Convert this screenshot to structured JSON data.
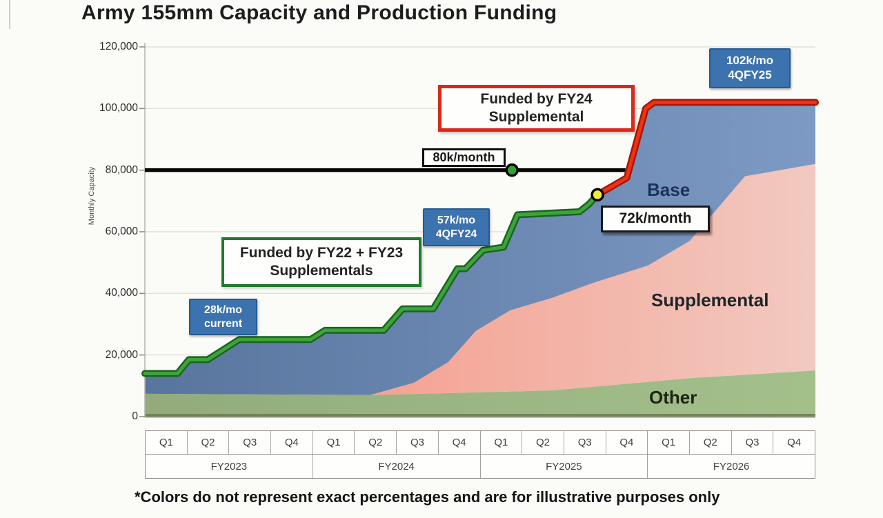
{
  "title": "Army 155mm Capacity and Production Funding",
  "footnote": "*Colors do not represent exact percentages and are for illustrative purposes only",
  "y_axis": {
    "label": "Monthly Capacity",
    "ticks": [
      {
        "text": "120,000",
        "k": 120
      },
      {
        "text": "100,000",
        "k": 100
      },
      {
        "text": "80,000",
        "k": 80
      },
      {
        "text": "60,000",
        "k": 60
      },
      {
        "text": "40,000",
        "k": 40
      },
      {
        "text": "20,000",
        "k": 20
      },
      {
        "text": "0",
        "k": 0
      }
    ]
  },
  "x_axis": {
    "years": [
      "FY2023",
      "FY2024",
      "FY2025",
      "FY2026"
    ],
    "quarters": [
      "Q1",
      "Q2",
      "Q3",
      "Q4"
    ]
  },
  "annotations": {
    "callout_28k": {
      "line1": "28k/mo",
      "line2": "current"
    },
    "callout_57k": {
      "line1": "57k/mo",
      "line2": "4QFY24"
    },
    "callout_102k": {
      "line1": "102k/mo",
      "line2": "4QFY25"
    },
    "funded_green": {
      "line1": "Funded by FY22 + FY23",
      "line2": "Supplementals"
    },
    "funded_red": {
      "line1": "Funded by FY24",
      "line2": "Supplemental"
    },
    "ref_80k": "80k/month",
    "label_72k": "72k/month",
    "area_base": "Base",
    "area_supplemental": "Supplemental",
    "area_other": "Other"
  },
  "colors": {
    "callout_badge_bg": "#3c73ae",
    "callout_badge_border": "#265a90",
    "red_box_border": "#d92a18",
    "green_box_border": "#1e7b2a"
  },
  "chart_data": {
    "type": "area",
    "title": "Army 155mm Capacity and Production Funding",
    "ylabel": "Monthly Capacity",
    "ylim": [
      0,
      120000
    ],
    "value_unit": "thousands of rounds per month (k)",
    "x_unit": "quarter index, 0 = start FY2023 Q1, 16 = end FY2026 Q4",
    "categories_years": [
      "FY2023",
      "FY2024",
      "FY2025",
      "FY2026"
    ],
    "quarters_per_year": [
      "Q1",
      "Q2",
      "Q3",
      "Q4"
    ],
    "grid": true,
    "stacked_areas": [
      {
        "name": "Other",
        "color_left": "#93ab7b",
        "color_right": "#a3c08b",
        "top_boundary_k": [
          [
            0,
            7.4
          ],
          [
            5.38,
            7
          ],
          [
            9.71,
            8.5
          ],
          [
            13,
            12.5
          ],
          [
            16,
            15
          ]
        ]
      },
      {
        "name": "Supplemental",
        "color_left": "#f58e7b",
        "color_right": "#f2c9c0",
        "top_boundary_k": [
          [
            0,
            7.4
          ],
          [
            5.38,
            7
          ],
          [
            6.42,
            11
          ],
          [
            7.24,
            17.7
          ],
          [
            7.9,
            27.8
          ],
          [
            8.72,
            34.5
          ],
          [
            9.71,
            38.5
          ],
          [
            10.7,
            43.4
          ],
          [
            12,
            49
          ],
          [
            13,
            57
          ],
          [
            14.32,
            78
          ],
          [
            16,
            82
          ]
        ]
      },
      {
        "name": "Base",
        "color_left": "#58759e",
        "color_right": "#7d9ac4",
        "top_boundary_k": "capacity_line"
      }
    ],
    "capacity_line": {
      "green_segment": {
        "label": "Funded by FY22 + FY23 Supplementals",
        "color": "#3fa33b",
        "edge_color": "#17651f",
        "points_k": [
          [
            0,
            14
          ],
          [
            0.78,
            14
          ],
          [
            1.05,
            18.5
          ],
          [
            1.5,
            18.5
          ],
          [
            2.25,
            25
          ],
          [
            3.95,
            25
          ],
          [
            4.3,
            28
          ],
          [
            5.7,
            28
          ],
          [
            6.15,
            35
          ],
          [
            6.88,
            35
          ],
          [
            7.46,
            48
          ],
          [
            7.65,
            48
          ],
          [
            8.07,
            54
          ],
          [
            8.56,
            55
          ],
          [
            8.89,
            65.5
          ],
          [
            10.37,
            66.5
          ],
          [
            10.6,
            69
          ],
          [
            10.8,
            72
          ]
        ]
      },
      "red_segment": {
        "label": "Funded by FY24 Supplemental",
        "color": "#ec3315",
        "edge_color": "#a91507",
        "points_k": [
          [
            10.8,
            72
          ],
          [
            11.5,
            77.5
          ],
          [
            11.95,
            100
          ],
          [
            12.15,
            102
          ],
          [
            16,
            102
          ]
        ]
      }
    },
    "reference_line": {
      "label": "80k/month",
      "value_k": 80,
      "x_q": [
        0,
        11.47
      ],
      "color": "#050505"
    },
    "markers": [
      {
        "label": "80k/month",
        "x_q": 8.76,
        "value_k": 80,
        "fill": "#2fa43c"
      },
      {
        "label": "72k/month",
        "x_q": 10.8,
        "value_k": 72,
        "fill": "#f2ea3a"
      }
    ],
    "callouts": [
      {
        "text": "28k/mo current"
      },
      {
        "text": "57k/mo 4QFY24"
      },
      {
        "text": "102k/mo 4QFY25"
      }
    ]
  }
}
